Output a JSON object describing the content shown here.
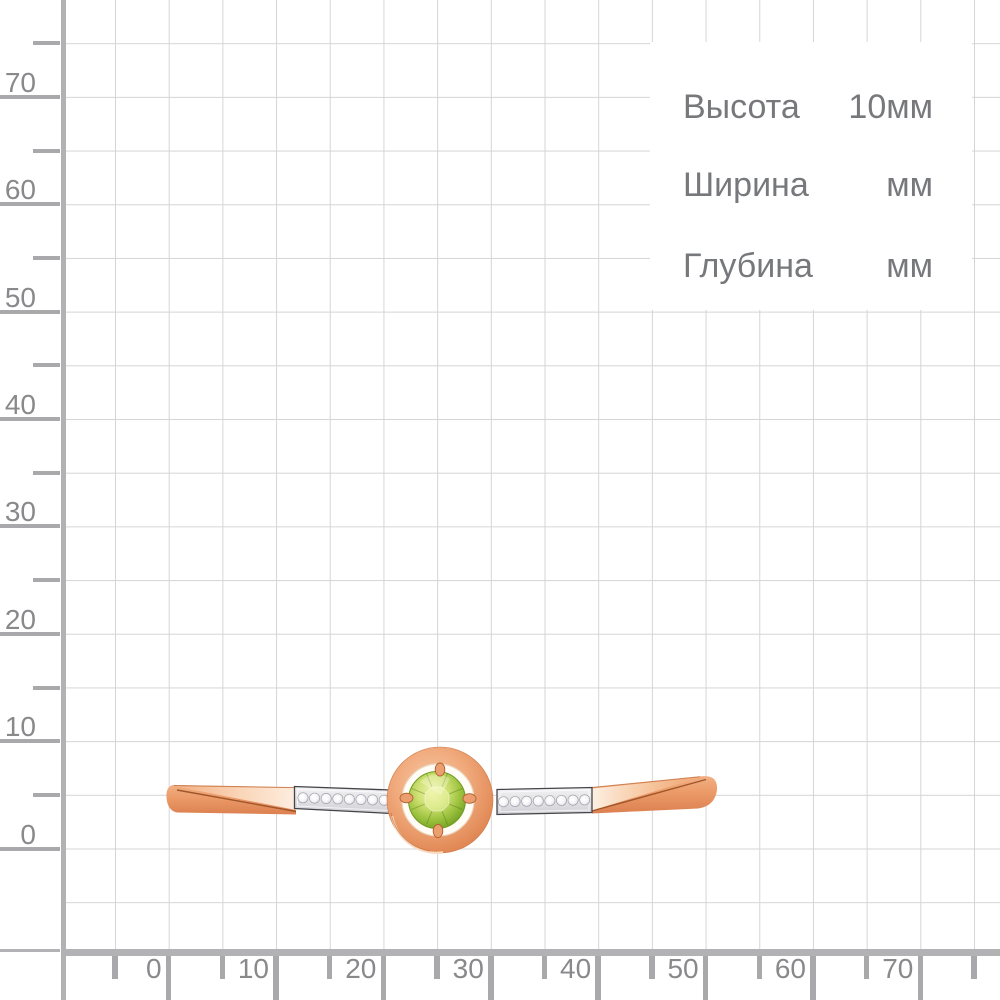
{
  "dimensions_panel": {
    "rows": [
      {
        "label": "Высота",
        "value": "10мм"
      },
      {
        "label": "Ширина",
        "value": "мм"
      },
      {
        "label": "Глубина",
        "value": "мм"
      }
    ]
  },
  "rulers": {
    "unit": "мм",
    "left": {
      "labels": [
        "70",
        "60",
        "50",
        "40",
        "30",
        "20",
        "10",
        "0"
      ]
    },
    "bottom": {
      "labels": [
        "0",
        "10",
        "20",
        "30",
        "40",
        "50",
        "60",
        "70"
      ]
    }
  },
  "product": {
    "description": "rose-gold ring, side view: tapered shank, two white-gold pavé diamond shoulders, circular halo bezel with round green peridot held by four prongs",
    "diamonds_per_strip": 8
  },
  "colors": {
    "rose_gold": "#e89560",
    "rose_gold_light": "#fbe3cf",
    "rose_gold_dark": "#a0562b",
    "peridot_green": "#8fbc34",
    "peridot_light": "#e7f0a4",
    "white_metal": "#e6e6ea",
    "ruler_gray": "#b2b2b5",
    "tick_gray": "#a9a9ac",
    "grid_gray": "#d5d5d7",
    "ruler_label_gray": "#89898c",
    "dimension_text_gray": "#77787b"
  }
}
